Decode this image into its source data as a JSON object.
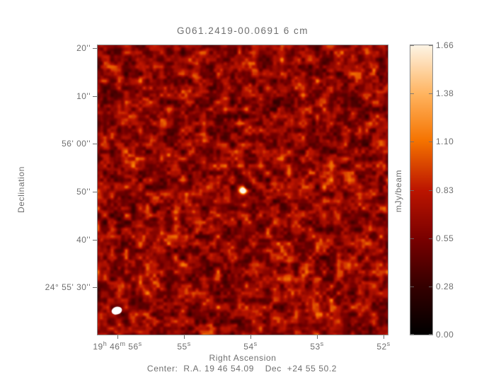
{
  "chart_data": {
    "type": "heatmap",
    "title": "G061.2419-00.0691 6 cm",
    "xlabel": "Right Ascension",
    "ylabel": "Declination",
    "caption": "Center:  R.A. 19 46 54.09    Dec  +24 55 50.2",
    "x_ticks": [
      {
        "rel": 0.0683,
        "segments": [
          {
            "t": "19"
          },
          {
            "t": "h",
            "sup": true
          },
          {
            "t": " 46"
          },
          {
            "t": "m",
            "sup": true
          },
          {
            "t": " 56"
          },
          {
            "t": "s",
            "sup": true
          }
        ]
      },
      {
        "rel": 0.2976,
        "segments": [
          {
            "t": "55"
          },
          {
            "t": "s",
            "sup": true
          }
        ]
      },
      {
        "rel": 0.5268,
        "segments": [
          {
            "t": "54"
          },
          {
            "t": "s",
            "sup": true
          }
        ]
      },
      {
        "rel": 0.7561,
        "segments": [
          {
            "t": "53"
          },
          {
            "t": "s",
            "sup": true
          }
        ]
      },
      {
        "rel": 0.9854,
        "segments": [
          {
            "t": "52"
          },
          {
            "t": "s",
            "sup": true
          }
        ]
      }
    ],
    "y_ticks": [
      {
        "rel": 0.0098,
        "label": "20''"
      },
      {
        "rel": 0.1753,
        "label": "10''"
      },
      {
        "rel": 0.3408,
        "label": "56' 00''"
      },
      {
        "rel": 0.5064,
        "label": "50''"
      },
      {
        "rel": 0.6719,
        "label": "40''"
      },
      {
        "rel": 0.8374,
        "label": "24° 55' 30''"
      }
    ],
    "colorbar": {
      "label": "mJy/beam",
      "min": 0.0,
      "max": 1.66,
      "ticks": [
        "1.66",
        "1.38",
        "1.10",
        "0.83",
        "0.55",
        "0.28",
        "0.00"
      ],
      "stops": [
        {
          "pos": 0.0,
          "color": "#000000"
        },
        {
          "pos": 0.17,
          "color": "#360000"
        },
        {
          "pos": 0.33,
          "color": "#790000"
        },
        {
          "pos": 0.5,
          "color": "#bc1500"
        },
        {
          "pos": 0.67,
          "color": "#f57300"
        },
        {
          "pos": 0.83,
          "color": "#ffb35e"
        },
        {
          "pos": 1.0,
          "color": "#fdf4e5"
        }
      ]
    },
    "features": {
      "point_source": {
        "rel_x": 0.5,
        "rel_y": 0.501,
        "peak_value": 1.66
      },
      "beam_ellipse_position": "bottom-left"
    },
    "render": {
      "seed": 11,
      "noise_octaves": [
        {
          "scale": 10,
          "weight": 0.62
        },
        {
          "scale": 5,
          "weight": 0.38
        }
      ],
      "base": 0.16,
      "gain": 0.55,
      "power": 1.25,
      "hotspots": [
        {
          "x": 0.5,
          "y": 0.501,
          "amp": 0.95,
          "sigma": 3.2
        },
        {
          "x": 0.505,
          "y": 0.553,
          "amp": 0.2,
          "sigma": 3.2
        },
        {
          "x": 0.455,
          "y": 0.088,
          "amp": 0.17,
          "sigma": 3.5
        },
        {
          "x": 0.905,
          "y": 0.075,
          "amp": 0.15,
          "sigma": 3.5
        },
        {
          "x": 0.33,
          "y": 0.105,
          "amp": 0.14,
          "sigma": 3.0
        }
      ],
      "beam": {
        "x": 0.066,
        "y": 0.917,
        "rx": 7.5,
        "ry": 5.5,
        "angle_deg": -15,
        "color": "#ffffff"
      }
    }
  },
  "colors": {
    "text": "#6f6f6f",
    "axis_border": "#8a8a8a",
    "background": "#ffffff"
  }
}
